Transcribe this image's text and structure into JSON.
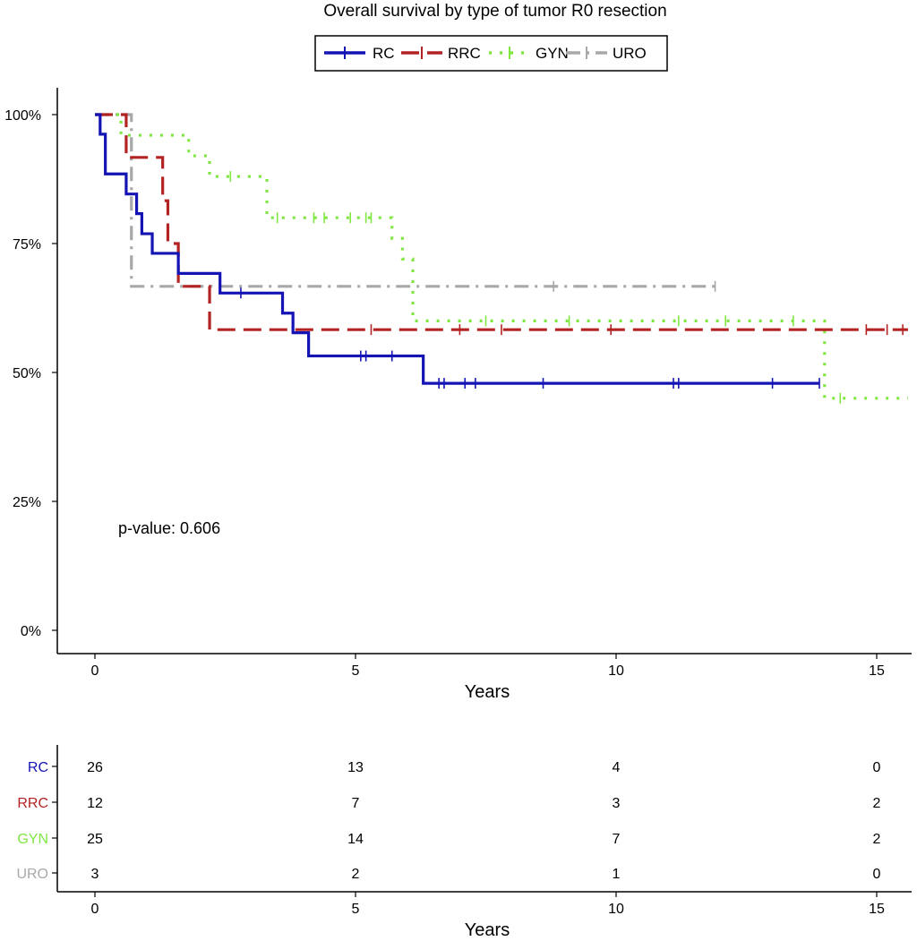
{
  "chart_data": [
    {
      "type": "line",
      "subtype": "kaplan-meier",
      "title": "Overall survival by type of tumor R0 resection",
      "xlabel": "Years",
      "ylabel": "",
      "xlim": [
        -0.7,
        15.6
      ],
      "ylim": [
        -0.05,
        1.05
      ],
      "xticks": [
        0,
        5,
        10,
        15
      ],
      "xtick_labels": [
        "0",
        "5",
        "10",
        "15"
      ],
      "yticks": [
        0,
        0.25,
        0.5,
        0.75,
        1.0
      ],
      "ytick_labels": [
        "0%",
        "25%",
        "50%",
        "75%",
        "100%"
      ],
      "grid": false,
      "legend_position": "top",
      "annotation": "p-value: 0.606",
      "series": [
        {
          "name": "RC",
          "color": "#1414b4",
          "dash": "solid",
          "steps": [
            [
              0,
              1.0
            ],
            [
              0.1,
              0.962
            ],
            [
              0.2,
              0.885
            ],
            [
              0.6,
              0.846
            ],
            [
              0.8,
              0.808
            ],
            [
              0.9,
              0.769
            ],
            [
              1.1,
              0.731
            ],
            [
              1.6,
              0.692
            ],
            [
              2.4,
              0.654
            ],
            [
              3.6,
              0.615
            ],
            [
              3.8,
              0.577
            ],
            [
              4.1,
              0.532
            ],
            [
              6.3,
              0.479
            ],
            [
              13.9,
              0.479
            ]
          ],
          "censors": [
            [
              2.8,
              0.654
            ],
            [
              5.1,
              0.532
            ],
            [
              5.2,
              0.532
            ],
            [
              5.7,
              0.532
            ],
            [
              6.6,
              0.479
            ],
            [
              6.7,
              0.479
            ],
            [
              7.1,
              0.479
            ],
            [
              7.3,
              0.479
            ],
            [
              8.6,
              0.479
            ],
            [
              11.1,
              0.479
            ],
            [
              11.2,
              0.479
            ],
            [
              13.0,
              0.479
            ],
            [
              13.9,
              0.479
            ]
          ]
        },
        {
          "name": "RRC",
          "color": "#b42323",
          "dash": "dashed",
          "steps": [
            [
              0,
              1.0
            ],
            [
              0.6,
              0.917
            ],
            [
              1.3,
              0.833
            ],
            [
              1.4,
              0.75
            ],
            [
              1.6,
              0.667
            ],
            [
              2.2,
              0.583
            ],
            [
              15.6,
              0.583
            ]
          ],
          "censors": [
            [
              5.3,
              0.583
            ],
            [
              7.0,
              0.583
            ],
            [
              7.8,
              0.583
            ],
            [
              9.9,
              0.583
            ],
            [
              14.8,
              0.583
            ],
            [
              15.2,
              0.583
            ],
            [
              15.5,
              0.583
            ]
          ]
        },
        {
          "name": "GYN",
          "color": "#80e640",
          "dash": "dotted",
          "steps": [
            [
              0,
              1.0
            ],
            [
              0.5,
              0.96
            ],
            [
              1.8,
              0.92
            ],
            [
              2.2,
              0.88
            ],
            [
              3.3,
              0.8
            ],
            [
              5.7,
              0.76
            ],
            [
              5.9,
              0.72
            ],
            [
              6.1,
              0.6
            ],
            [
              14.0,
              0.45
            ],
            [
              15.6,
              0.45
            ]
          ],
          "censors": [
            [
              2.6,
              0.88
            ],
            [
              3.5,
              0.8
            ],
            [
              4.2,
              0.8
            ],
            [
              4.4,
              0.8
            ],
            [
              4.9,
              0.8
            ],
            [
              5.2,
              0.8
            ],
            [
              5.3,
              0.8
            ],
            [
              7.5,
              0.6
            ],
            [
              9.1,
              0.6
            ],
            [
              11.2,
              0.6
            ],
            [
              12.1,
              0.6
            ],
            [
              13.4,
              0.6
            ],
            [
              14.3,
              0.45
            ]
          ]
        },
        {
          "name": "URO",
          "color": "#a8a8a8",
          "dash": "dashdot",
          "steps": [
            [
              0,
              1.0
            ],
            [
              0.7,
              0.667
            ],
            [
              11.9,
              0.667
            ]
          ],
          "censors": [
            [
              8.8,
              0.667
            ],
            [
              11.9,
              0.667
            ]
          ]
        }
      ]
    },
    {
      "type": "table",
      "subtype": "number-at-risk",
      "xlabel": "Years",
      "xlim": [
        -0.7,
        15.6
      ],
      "xticks": [
        0,
        5,
        10,
        15
      ],
      "xtick_labels": [
        "0",
        "5",
        "10",
        "15"
      ],
      "rows": [
        {
          "name": "RC",
          "color": "#1414b4",
          "values": [
            "26",
            "13",
            "4",
            "0"
          ]
        },
        {
          "name": "RRC",
          "color": "#b42323",
          "values": [
            "12",
            "7",
            "3",
            "2"
          ]
        },
        {
          "name": "GYN",
          "color": "#80e640",
          "values": [
            "25",
            "14",
            "7",
            "2"
          ]
        },
        {
          "name": "URO",
          "color": "#a8a8a8",
          "values": [
            "3",
            "2",
            "1",
            "0"
          ]
        }
      ]
    }
  ]
}
